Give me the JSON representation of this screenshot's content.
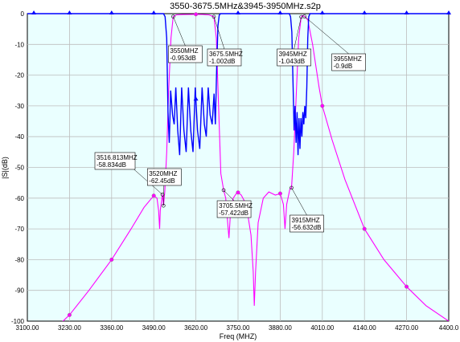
{
  "chart_data": {
    "type": "line",
    "title": "3550-3675.5MHz&3945-3950MHz.s2p",
    "xlabel": "Freq (MHZ)",
    "ylabel": "|S|(dB)",
    "xlim": [
      3100,
      4400
    ],
    "ylim": [
      -100,
      0
    ],
    "x_ticks": [
      "3100.00",
      "3230.00",
      "3360.00",
      "3490.00",
      "3620.00",
      "3750.00",
      "3880.00",
      "4010.00",
      "4140.00",
      "4270.00",
      "4400.0"
    ],
    "y_ticks": [
      "0",
      "-10",
      "-20",
      "-30",
      "-40",
      "-50",
      "-60",
      "-70",
      "-80",
      "-90",
      "-100"
    ],
    "grid": true,
    "background": "#eaffff",
    "series": [
      {
        "color": "#ff00ff",
        "points": [
          [
            3100,
            -109
          ],
          [
            3180,
            -103
          ],
          [
            3230,
            -98
          ],
          [
            3290,
            -90
          ],
          [
            3360,
            -80
          ],
          [
            3420,
            -70
          ],
          [
            3460,
            -63
          ],
          [
            3490,
            -59.2
          ],
          [
            3500,
            -60
          ],
          [
            3505,
            -64
          ],
          [
            3508,
            -70
          ],
          [
            3510,
            -64
          ],
          [
            3516.8,
            -58.8
          ],
          [
            3520,
            -62.4
          ],
          [
            3524,
            -58
          ],
          [
            3530,
            -45
          ],
          [
            3536,
            -25
          ],
          [
            3543,
            -8
          ],
          [
            3550,
            -0.95
          ],
          [
            3560,
            -0.4
          ],
          [
            3580,
            -0.3
          ],
          [
            3600,
            -0.25
          ],
          [
            3620,
            -0.2
          ],
          [
            3640,
            -0.25
          ],
          [
            3660,
            -0.4
          ],
          [
            3675.5,
            -1.0
          ],
          [
            3683,
            -8
          ],
          [
            3690,
            -30
          ],
          [
            3697,
            -52
          ],
          [
            3705.5,
            -57.4
          ],
          [
            3712,
            -60
          ],
          [
            3718,
            -68
          ],
          [
            3722,
            -73
          ],
          [
            3726,
            -66
          ],
          [
            3735,
            -60
          ],
          [
            3748,
            -58
          ],
          [
            3760,
            -59
          ],
          [
            3775,
            -62
          ],
          [
            3790,
            -72
          ],
          [
            3797,
            -84
          ],
          [
            3800,
            -95
          ],
          [
            3804,
            -84
          ],
          [
            3812,
            -68
          ],
          [
            3828,
            -60
          ],
          [
            3845,
            -58
          ],
          [
            3865,
            -59
          ],
          [
            3880,
            -58.5
          ],
          [
            3890,
            -62
          ],
          [
            3895,
            -70
          ],
          [
            3900,
            -62
          ],
          [
            3910,
            -57
          ],
          [
            3915,
            -56.6
          ],
          [
            3922,
            -45
          ],
          [
            3930,
            -25
          ],
          [
            3937,
            -8
          ],
          [
            3945,
            -1.0
          ],
          [
            3950,
            -0.6
          ],
          [
            3955,
            -0.9
          ],
          [
            3965,
            -2
          ],
          [
            3980,
            -10
          ],
          [
            4000,
            -24
          ],
          [
            4010,
            -30
          ],
          [
            4040,
            -41
          ],
          [
            4080,
            -54
          ],
          [
            4140,
            -70
          ],
          [
            4200,
            -80
          ],
          [
            4270,
            -88.8
          ],
          [
            4330,
            -95
          ],
          [
            4400,
            -100
          ]
        ],
        "markers": [
          3230,
          3360,
          3490,
          3620,
          3750,
          3880,
          4010,
          4140,
          4270
        ]
      },
      {
        "color": "#0000ff",
        "points": [
          [
            3100,
            0
          ],
          [
            3520,
            0
          ],
          [
            3525,
            -1
          ],
          [
            3530,
            -8
          ],
          [
            3534,
            -32
          ],
          [
            3538,
            -42
          ],
          [
            3542,
            -25
          ],
          [
            3548,
            -33
          ],
          [
            3553,
            -36
          ],
          [
            3558,
            -24
          ],
          [
            3564,
            -38
          ],
          [
            3570,
            -46
          ],
          [
            3576,
            -24
          ],
          [
            3583,
            -38
          ],
          [
            3590,
            -45
          ],
          [
            3597,
            -24
          ],
          [
            3604,
            -38
          ],
          [
            3611,
            -45
          ],
          [
            3618,
            -24
          ],
          [
            3625,
            -38
          ],
          [
            3632,
            -44
          ],
          [
            3639,
            -24
          ],
          [
            3646,
            -36
          ],
          [
            3652,
            -40
          ],
          [
            3658,
            -24
          ],
          [
            3664,
            -33
          ],
          [
            3670,
            -36
          ],
          [
            3676,
            -26
          ],
          [
            3680,
            -36
          ],
          [
            3684,
            -18
          ],
          [
            3688,
            -4
          ],
          [
            3692,
            -0.5
          ],
          [
            3696,
            0
          ],
          [
            3908,
            0
          ],
          [
            3912,
            -1
          ],
          [
            3916,
            -6
          ],
          [
            3920,
            -24
          ],
          [
            3923,
            -38
          ],
          [
            3926,
            -30
          ],
          [
            3929,
            -42
          ],
          [
            3932,
            -32
          ],
          [
            3935,
            -46
          ],
          [
            3938,
            -34
          ],
          [
            3941,
            -44
          ],
          [
            3944,
            -34
          ],
          [
            3947,
            -40
          ],
          [
            3950,
            -32
          ],
          [
            3953,
            -36
          ],
          [
            3956,
            -30
          ],
          [
            3959,
            -34
          ],
          [
            3962,
            -24
          ],
          [
            3965,
            -8
          ],
          [
            3968,
            -1
          ],
          [
            3972,
            0
          ],
          [
            4400,
            0
          ]
        ],
        "markers": [
          3120,
          3230,
          3360,
          3490,
          3620,
          3750,
          3880,
          4010,
          4140,
          4270,
          4400
        ]
      }
    ],
    "marker_labels": [
      {
        "freq": "3550MHZ",
        "db": "-0.953dB",
        "x": 3550,
        "y": -0.953
      },
      {
        "freq": "3675.5MHZ",
        "db": "-1.002dB",
        "x": 3675.5,
        "y": -1.002
      },
      {
        "freq": "3945MHZ",
        "db": "-1.043dB",
        "x": 3945,
        "y": -1.043
      },
      {
        "freq": "3955MHZ",
        "db": "-0.9dB",
        "x": 3955,
        "y": -0.9
      },
      {
        "freq": "3516.813MHZ",
        "db": "-58.834dB",
        "x": 3516.813,
        "y": -58.834
      },
      {
        "freq": "3520MHZ",
        "db": "-62.45dB",
        "x": 3520,
        "y": -62.45
      },
      {
        "freq": "3705.5MHZ",
        "db": "-57.422dB",
        "x": 3705.5,
        "y": -57.422
      },
      {
        "freq": "3915MHZ",
        "db": "-56.632dB",
        "x": 3915,
        "y": -56.632
      }
    ]
  }
}
